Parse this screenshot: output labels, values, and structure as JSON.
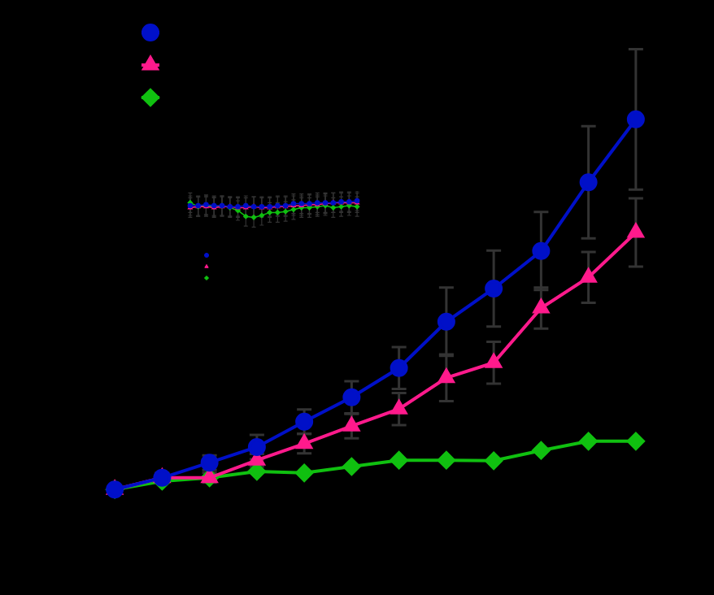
{
  "chart_data": [
    {
      "type": "line",
      "x": [
        0,
        1,
        2,
        3,
        4,
        5,
        6,
        7,
        8,
        9,
        10,
        11
      ],
      "xlim": [
        -0.5,
        11.5
      ],
      "ylim": [
        0,
        100
      ],
      "grid": false,
      "tick_labels": false,
      "legend": "top-left",
      "series": [
        {
          "color": "#0010c8",
          "marker": "circle",
          "line_style": "solid",
          "values": [
            6.3,
            8.7,
            11.8,
            15,
            20.2,
            25.2,
            31.2,
            40.7,
            47.5,
            55.2,
            69.3,
            82.2
          ],
          "errors": [
            0.5,
            1,
            1.5,
            2.5,
            2.5,
            3.3,
            4.3,
            7,
            7.8,
            8,
            11.5,
            14.4
          ]
        },
        {
          "color": "#ff1a8c",
          "marker": "triangle",
          "line_style": "solid",
          "values": [
            6.3,
            8.7,
            8.7,
            12.3,
            15.7,
            19.3,
            22.8,
            29.2,
            32.3,
            43.5,
            49.8,
            59
          ],
          "errors": [
            0.5,
            0.8,
            1,
            1.3,
            2,
            2.5,
            3.3,
            4.8,
            4.3,
            4.2,
            5.2,
            7
          ]
        },
        {
          "color": "#10c010",
          "marker": "diamond",
          "line_style": "solid",
          "values": [
            6.3,
            8,
            8.7,
            10,
            9.7,
            11,
            12.3,
            12.3,
            12.2,
            14.3,
            16.2,
            16.2
          ]
        }
      ]
    },
    {
      "type": "line",
      "x": [
        0,
        1,
        2,
        3,
        4,
        5,
        6,
        7,
        8,
        9,
        10,
        11,
        12,
        13,
        14,
        15,
        16,
        17,
        18,
        19,
        20,
        21
      ],
      "xlim": [
        -0.5,
        21.5
      ],
      "ylim": [
        0,
        10
      ],
      "grid": false,
      "tick_labels": false,
      "legend": "bottom-left",
      "series": [
        {
          "color": "#0010c8",
          "marker": "circle",
          "line_style": "solid",
          "values": [
            8.5,
            8.5,
            8.6,
            8.5,
            8.5,
            8.4,
            8.4,
            8.5,
            8.4,
            8.4,
            8.4,
            8.5,
            8.5,
            8.7,
            8.7,
            8.7,
            8.8,
            8.8,
            8.8,
            8.9,
            8.9,
            9.0
          ],
          "errors": [
            1,
            1,
            1,
            1,
            1,
            1,
            1,
            1,
            1,
            1,
            1,
            1,
            1,
            1,
            1,
            1,
            1,
            1,
            1,
            1,
            1,
            1
          ]
        },
        {
          "color": "#ff1a8c",
          "marker": "triangle",
          "line_style": "solid",
          "values": [
            8.3,
            8.4,
            8.4,
            8.3,
            8.4,
            8.4,
            8.3,
            8.3,
            8.4,
            8.3,
            8.3,
            8.4,
            8.4,
            8.5,
            8.5,
            8.6,
            8.6,
            8.7,
            8.8,
            8.8,
            8.8,
            8.8
          ],
          "errors": [
            1,
            1,
            1,
            1,
            1,
            1,
            1,
            1,
            1,
            1,
            1,
            1,
            1,
            1,
            1,
            1,
            1,
            1,
            1,
            1,
            1,
            1
          ]
        },
        {
          "color": "#10c010",
          "marker": "diamond",
          "line_style": "solid",
          "values": [
            8.8,
            8.4,
            8.5,
            8.4,
            8.5,
            8.3,
            8.0,
            7.4,
            7.3,
            7.5,
            7.8,
            7.8,
            7.9,
            8.1,
            8.3,
            8.3,
            8.4,
            8.5,
            8.3,
            8.4,
            8.5,
            8.4
          ],
          "errors": [
            1,
            1,
            1,
            1,
            1,
            1,
            1,
            1,
            1,
            1,
            1,
            1,
            1,
            1,
            1,
            1,
            1,
            1,
            1,
            1,
            1,
            1
          ]
        }
      ]
    }
  ]
}
